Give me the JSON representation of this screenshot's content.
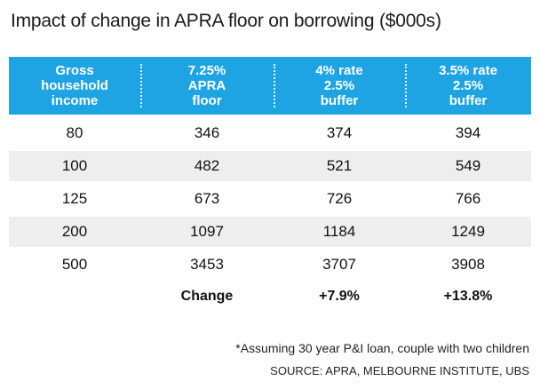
{
  "title": "Impact of change in APRA floor on borrowing ($000s)",
  "chart_data": {
    "type": "table",
    "title": "Impact of change in APRA floor on borrowing ($000s)",
    "columns": [
      {
        "lines": [
          "Gross",
          "household",
          "income"
        ]
      },
      {
        "lines": [
          "7.25%",
          "APRA",
          "floor"
        ]
      },
      {
        "lines": [
          "4% rate",
          "2.5%",
          "buffer"
        ]
      },
      {
        "lines": [
          "3.5% rate",
          "2.5%",
          "buffer"
        ]
      }
    ],
    "rows": [
      [
        "80",
        "346",
        "374",
        "394"
      ],
      [
        "100",
        "482",
        "521",
        "549"
      ],
      [
        "125",
        "673",
        "726",
        "766"
      ],
      [
        "200",
        "1097",
        "1184",
        "1249"
      ],
      [
        "500",
        "3453",
        "3707",
        "3908"
      ]
    ],
    "change_row": [
      "",
      "Change",
      "+7.9%",
      "+13.8%"
    ]
  },
  "footnote": "*Assuming 30 year P&I loan, couple with two children",
  "source": "SOURCE: APRA, MELBOURNE INSTITUTE, UBS",
  "colors": {
    "header_bg": "#1fa4e3",
    "header_text": "#ffffff",
    "stripe": "#eeeeee"
  }
}
